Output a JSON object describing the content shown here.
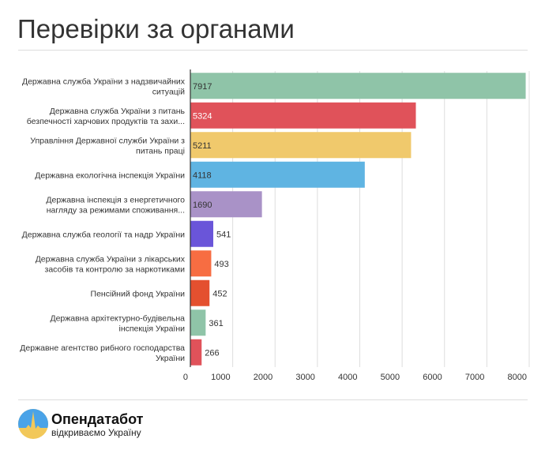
{
  "page": {
    "title": "Перевірки за органами"
  },
  "footer": {
    "brand": "Опендатабот",
    "tagline": "відкриваємо Україну"
  },
  "chart_data": {
    "type": "bar",
    "orientation": "horizontal",
    "title": "Перевірки за органами",
    "xlim": [
      0,
      8000
    ],
    "ticks": [
      0,
      1000,
      2000,
      3000,
      4000,
      5000,
      6000,
      7000,
      8000
    ],
    "grid": true,
    "categories": [
      [
        "Державна служба України з надзвичайних",
        "ситуацій"
      ],
      [
        "Державна служба України з питань",
        "безпечності харчових продуктів та захи..."
      ],
      [
        "Управління Державної служби України з",
        "питань праці"
      ],
      [
        "Державна екологічна інспекція України"
      ],
      [
        "Державна інспекція з енергетичного",
        "нагляду за режимами споживання..."
      ],
      [
        "Державна служба геології та надр України"
      ],
      [
        "Державна служба України з лікарських",
        "засобів та контролю за наркотиками"
      ],
      [
        "Пенсійний фонд України"
      ],
      [
        "Державна архітектурно-будівельна",
        "інспекція України"
      ],
      [
        "Державне агентство рибного господарства",
        "України"
      ]
    ],
    "values": [
      7917,
      5324,
      5211,
      4118,
      1690,
      541,
      493,
      452,
      361,
      266
    ],
    "colors": [
      "#8fc4a8",
      "#e0525a",
      "#f0c96c",
      "#5fb4e2",
      "#a992c7",
      "#6a55d9",
      "#f76d42",
      "#e4502f",
      "#8fc4a8",
      "#e0525a"
    ],
    "label_colors": [
      "#333333",
      "#ffffff",
      "#333333",
      "#333333",
      "#333333",
      "#ffffff",
      "#333333",
      "#ffffff",
      "#333333",
      "#333333"
    ]
  }
}
